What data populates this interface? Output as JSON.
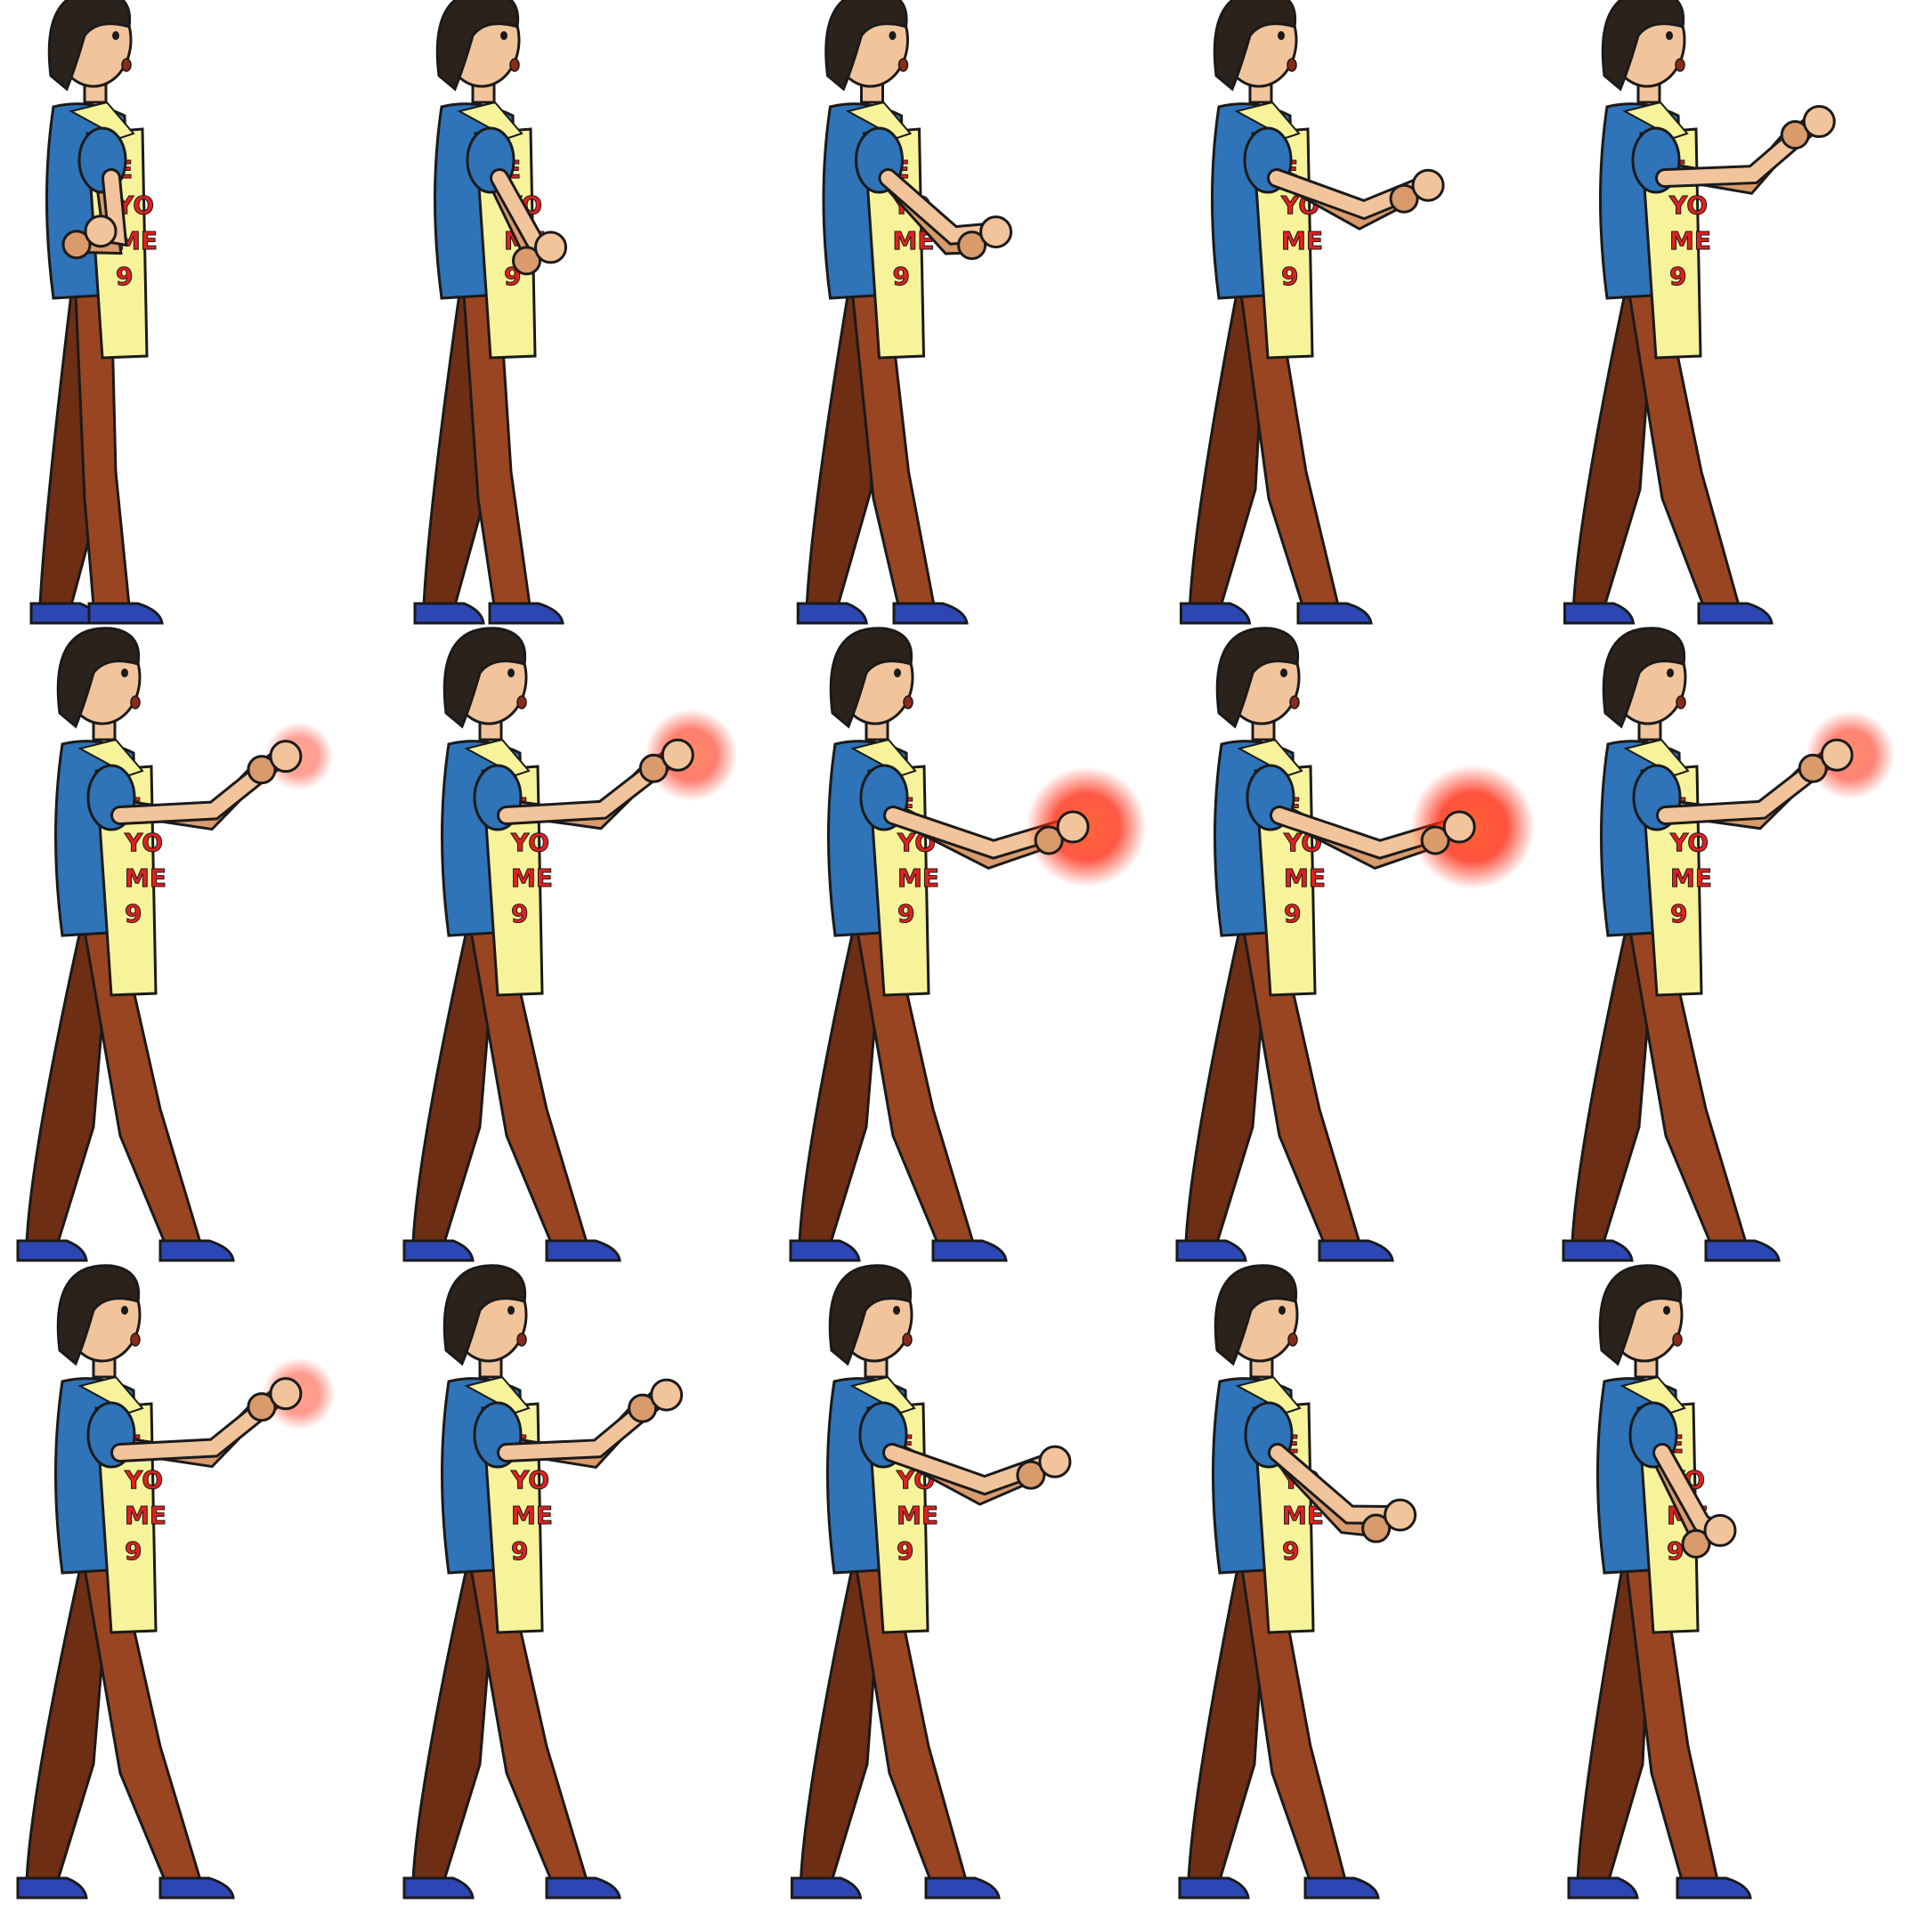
{
  "sprite_sheet": {
    "columns": 5,
    "rows": 3,
    "background": "#ffffff",
    "colors": {
      "outline": "#1a1a1a",
      "hair": "#2b221c",
      "skin": "#f2c49b",
      "skin_shade": "#d99a6c",
      "shirt": "#2f73b8",
      "shirt_shade": "#1f4f86",
      "apron": "#f6f39a",
      "apron_text": "#e02020",
      "pants": "#9a4522",
      "pants_shade": "#6e2e14",
      "shoe": "#2c47b3",
      "glow": "#ff3a1a"
    },
    "apron_lines": [
      "E",
      "YO",
      "ME",
      "9"
    ],
    "frames": [
      {
        "name": "frame-01",
        "arm": "down",
        "reach": 0.0,
        "stride": 0.0,
        "glow": 0.0
      },
      {
        "name": "frame-02",
        "arm": "low",
        "reach": 0.3,
        "stride": 0.2,
        "glow": 0.0
      },
      {
        "name": "frame-03",
        "arm": "mid",
        "reach": 0.55,
        "stride": 0.45,
        "glow": 0.0
      },
      {
        "name": "frame-04",
        "arm": "level",
        "reach": 0.75,
        "stride": 0.7,
        "glow": 0.0
      },
      {
        "name": "frame-05",
        "arm": "raised",
        "reach": 0.8,
        "stride": 0.9,
        "glow": 0.0
      },
      {
        "name": "frame-06",
        "arm": "raised",
        "reach": 0.9,
        "stride": 1.0,
        "glow": 0.3
      },
      {
        "name": "frame-07",
        "arm": "raised",
        "reach": 0.95,
        "stride": 1.0,
        "glow": 0.6
      },
      {
        "name": "frame-08",
        "arm": "level",
        "reach": 1.0,
        "stride": 1.0,
        "glow": 0.95
      },
      {
        "name": "frame-09",
        "arm": "level",
        "reach": 1.0,
        "stride": 1.0,
        "glow": 1.0
      },
      {
        "name": "frame-10",
        "arm": "raised",
        "reach": 0.95,
        "stride": 1.0,
        "glow": 0.55
      },
      {
        "name": "frame-11",
        "arm": "raised",
        "reach": 0.9,
        "stride": 1.0,
        "glow": 0.35
      },
      {
        "name": "frame-12",
        "arm": "raised",
        "reach": 0.85,
        "stride": 1.0,
        "glow": 0.0
      },
      {
        "name": "frame-13",
        "arm": "level",
        "reach": 0.85,
        "stride": 0.9,
        "glow": 0.0
      },
      {
        "name": "frame-14",
        "arm": "mid",
        "reach": 0.7,
        "stride": 0.8,
        "glow": 0.0
      },
      {
        "name": "frame-15",
        "arm": "low",
        "reach": 0.4,
        "stride": 0.6,
        "glow": 0.0
      }
    ]
  }
}
